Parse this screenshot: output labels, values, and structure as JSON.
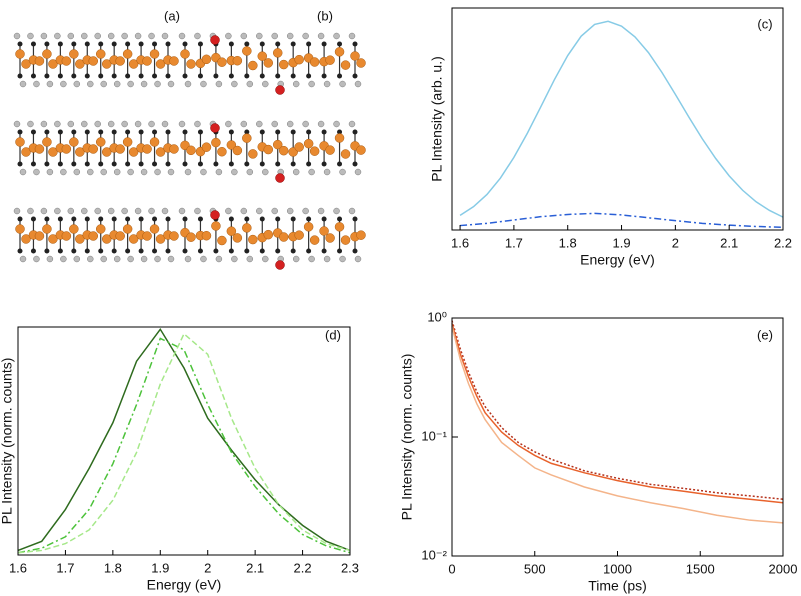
{
  "structure_panels": [
    {
      "label": "(a)"
    },
    {
      "label": "(b)"
    }
  ],
  "chart_data": [
    {
      "type": "line",
      "panel_label": "(c)",
      "xlabel": "Energy (eV)",
      "ylabel": "PL Intensity (arb. u.)",
      "xlim": [
        1.585,
        2.2
      ],
      "xticks": [
        1.6,
        1.7,
        1.8,
        1.9,
        2.0,
        2.1,
        2.2
      ],
      "ylim": [
        0,
        1
      ],
      "ylog": false,
      "series": [
        {
          "color": "#87cbe6",
          "linestyle": "solid",
          "x": [
            1.6,
            1.625,
            1.65,
            1.675,
            1.7,
            1.725,
            1.75,
            1.775,
            1.8,
            1.825,
            1.85,
            1.875,
            1.9,
            1.925,
            1.95,
            1.975,
            2.0,
            2.025,
            2.05,
            2.075,
            2.1,
            2.125,
            2.15,
            2.175,
            2.2
          ],
          "values": [
            0.066,
            0.105,
            0.16,
            0.234,
            0.327,
            0.436,
            0.555,
            0.676,
            0.786,
            0.873,
            0.926,
            0.94,
            0.918,
            0.87,
            0.799,
            0.71,
            0.611,
            0.509,
            0.411,
            0.322,
            0.244,
            0.179,
            0.127,
            0.088,
            0.058
          ]
        },
        {
          "color": "#2a5fd6",
          "linestyle": "dashdot",
          "x": [
            1.6,
            1.65,
            1.7,
            1.75,
            1.8,
            1.85,
            1.9,
            1.95,
            2.0,
            2.05,
            2.1,
            2.15,
            2.2
          ],
          "values": [
            0.02,
            0.03,
            0.045,
            0.06,
            0.07,
            0.075,
            0.068,
            0.055,
            0.042,
            0.03,
            0.022,
            0.016,
            0.012
          ]
        }
      ]
    },
    {
      "type": "line",
      "panel_label": "(d)",
      "xlabel": "Energy (eV)",
      "ylabel": "PL Intensity (norm. counts)",
      "xlim": [
        1.6,
        2.3
      ],
      "xticks": [
        1.6,
        1.7,
        1.8,
        1.9,
        2.0,
        2.1,
        2.2,
        2.3
      ],
      "ylim": [
        0,
        1.0
      ],
      "ylog": false,
      "x": [
        1.6,
        1.65,
        1.7,
        1.75,
        1.8,
        1.85,
        1.9,
        1.95,
        2.0,
        2.05,
        2.1,
        2.15,
        2.2,
        2.25,
        2.3
      ],
      "series": [
        {
          "color": "#2e6b1e",
          "linestyle": "solid",
          "values": [
            0.02,
            0.06,
            0.2,
            0.38,
            0.58,
            0.85,
            0.99,
            0.82,
            0.6,
            0.46,
            0.33,
            0.22,
            0.13,
            0.06,
            0.02
          ]
        },
        {
          "color": "#4cc23a",
          "linestyle": "dashdot",
          "values": [
            0.01,
            0.03,
            0.08,
            0.2,
            0.4,
            0.66,
            0.95,
            0.9,
            0.66,
            0.45,
            0.3,
            0.18,
            0.09,
            0.04,
            0.01
          ]
        },
        {
          "color": "#a6e88a",
          "linestyle": "dashed",
          "values": [
            0.01,
            0.02,
            0.05,
            0.11,
            0.24,
            0.45,
            0.75,
            0.97,
            0.88,
            0.6,
            0.38,
            0.22,
            0.11,
            0.05,
            0.02
          ]
        }
      ]
    },
    {
      "type": "line",
      "panel_label": "(e)",
      "xlabel": "Time (ps)",
      "ylabel": "PL Intensity (norm. counts)",
      "xlim": [
        0,
        2000
      ],
      "xticks": [
        0,
        500,
        1000,
        1500,
        2000
      ],
      "ylim": [
        0.01,
        1
      ],
      "ylog": true,
      "yticks": [
        {
          "value": 0.01,
          "label": "10⁻²"
        },
        {
          "value": 0.1,
          "label": "10⁻¹"
        },
        {
          "value": 1,
          "label": "10⁰"
        }
      ],
      "x": [
        0,
        50,
        100,
        150,
        200,
        300,
        400,
        500,
        600,
        800,
        1000,
        1200,
        1400,
        1600,
        1800,
        2000
      ],
      "series": [
        {
          "color": "#b5311a",
          "linestyle": "dotted",
          "values": [
            0.95,
            0.55,
            0.35,
            0.24,
            0.18,
            0.12,
            0.09,
            0.075,
            0.065,
            0.052,
            0.045,
            0.04,
            0.037,
            0.034,
            0.032,
            0.03
          ]
        },
        {
          "color": "#e8622c",
          "linestyle": "solid",
          "values": [
            0.9,
            0.5,
            0.32,
            0.22,
            0.16,
            0.11,
            0.085,
            0.07,
            0.06,
            0.05,
            0.043,
            0.038,
            0.035,
            0.032,
            0.03,
            0.028
          ]
        },
        {
          "color": "#f4b48a",
          "linestyle": "solid",
          "values": [
            0.85,
            0.45,
            0.28,
            0.19,
            0.14,
            0.09,
            0.07,
            0.055,
            0.048,
            0.038,
            0.032,
            0.028,
            0.025,
            0.022,
            0.02,
            0.019
          ]
        }
      ]
    }
  ]
}
